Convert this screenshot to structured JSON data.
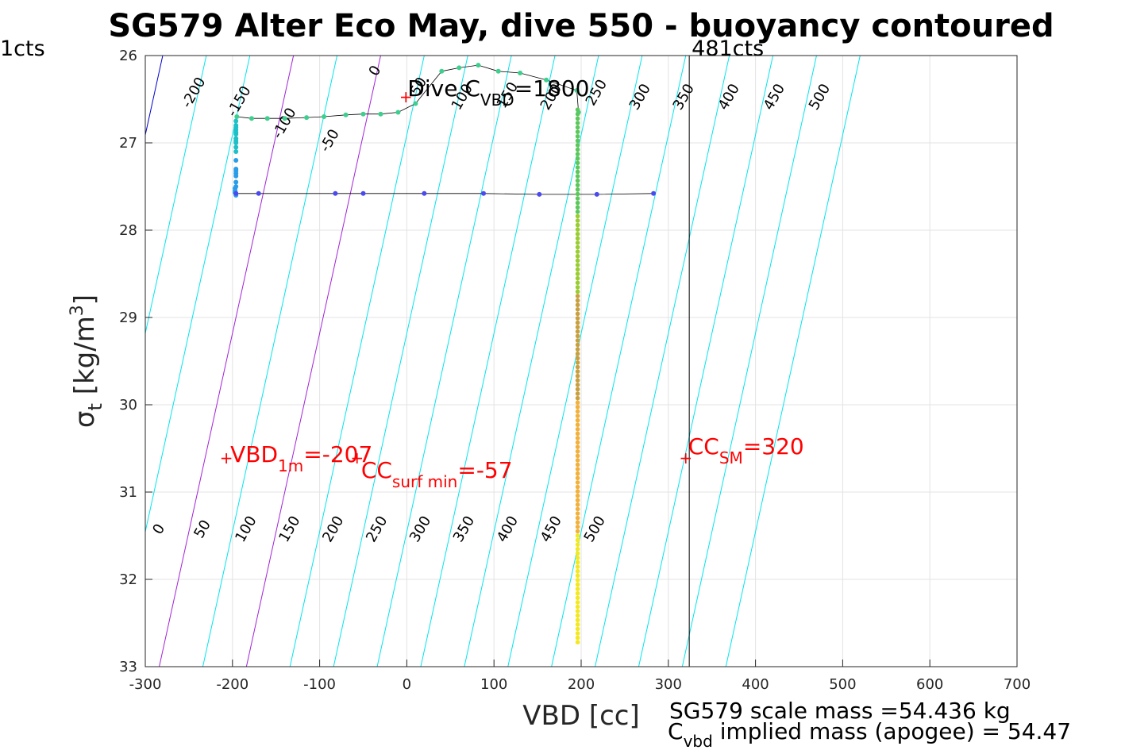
{
  "title": "SG579 Alter Eco May, dive 550 - buoyancy contoured",
  "chart_data": {
    "type": "scatter",
    "xlabel": "VBD [cc]",
    "ylabel": "σt [kg/m3]",
    "xlim": [
      -300,
      700
    ],
    "ylim": [
      26,
      33
    ],
    "y_reversed": true,
    "grid": true,
    "x_ticks": [
      "-300",
      "-200",
      "-100",
      "0",
      "100",
      "200",
      "300",
      "400",
      "500",
      "600",
      "700"
    ],
    "y_ticks": [
      "26",
      "27",
      "28",
      "29",
      "30",
      "31",
      "32",
      "33"
    ],
    "contour_levels_upper": [
      "-200",
      "-150",
      "-100",
      "-50",
      "0",
      "50",
      "100",
      "150",
      "200",
      "250",
      "300",
      "350",
      "400",
      "450",
      "500"
    ],
    "contour_levels_lower": [
      "0",
      "50",
      "100",
      "150",
      "200",
      "250",
      "300",
      "350",
      "400",
      "450",
      "500"
    ],
    "profile_top": {
      "x": [
        -195,
        -178,
        -160,
        -140,
        -115,
        -95,
        -70,
        -50,
        -30,
        -10,
        10,
        40,
        60,
        82,
        105,
        130,
        160,
        195,
        197
      ],
      "y": [
        26.7,
        26.72,
        26.72,
        26.72,
        26.71,
        26.7,
        26.68,
        26.67,
        26.67,
        26.65,
        26.55,
        26.18,
        26.14,
        26.11,
        26.18,
        26.2,
        26.28,
        26.4,
        26.65
      ]
    },
    "profile_bottom": {
      "x": [
        -196,
        -196,
        -196,
        -196,
        -196,
        -196,
        -196,
        -196,
        -196,
        -196,
        -196,
        -196,
        -196,
        -196,
        -196,
        -196,
        -196,
        -196,
        -197,
        -197,
        -197,
        -196,
        -196
      ],
      "y": [
        26.75,
        26.8,
        26.82,
        26.85,
        26.88,
        26.9,
        26.95,
        26.98,
        27.0,
        27.05,
        27.1,
        27.2,
        27.3,
        27.32,
        27.35,
        27.38,
        27.45,
        27.5,
        27.52,
        27.55,
        27.57,
        27.58,
        27.6
      ]
    },
    "profile_horizontal": {
      "x": [
        -196,
        -170,
        -82,
        -50,
        20,
        88,
        152,
        218,
        283
      ],
      "y": [
        27.58,
        27.58,
        27.58,
        27.58,
        27.58,
        27.58,
        27.59,
        27.59,
        27.58
      ]
    },
    "vertical_line_vbd": 324,
    "vertical_line_label": "481cts",
    "left_counts_label": "1cts",
    "annotations": {
      "dive_c_vbd": {
        "base": "Dive C",
        "sub": "VBD",
        "tail": "=1800",
        "x": -1,
        "y": 26.48
      },
      "vbd_1m": {
        "base": "VBD",
        "sub": "1m",
        "tail": "=-207",
        "x": -207,
        "y": 30.62
      },
      "cc_surf_min": {
        "base": "CC",
        "sub": "surf min",
        "tail": "=-57",
        "x": -57,
        "y": 30.62
      },
      "cc_sm": {
        "base": "CC",
        "sub": "SM",
        "tail": "=320",
        "x": 320,
        "y": 30.62
      }
    },
    "footer": {
      "scale_mass": "SG579 scale mass =54.436 kg",
      "implied_base": "C",
      "implied_sub": "vbd",
      "implied_tail": " implied mass (apogee) = 54.47"
    }
  }
}
